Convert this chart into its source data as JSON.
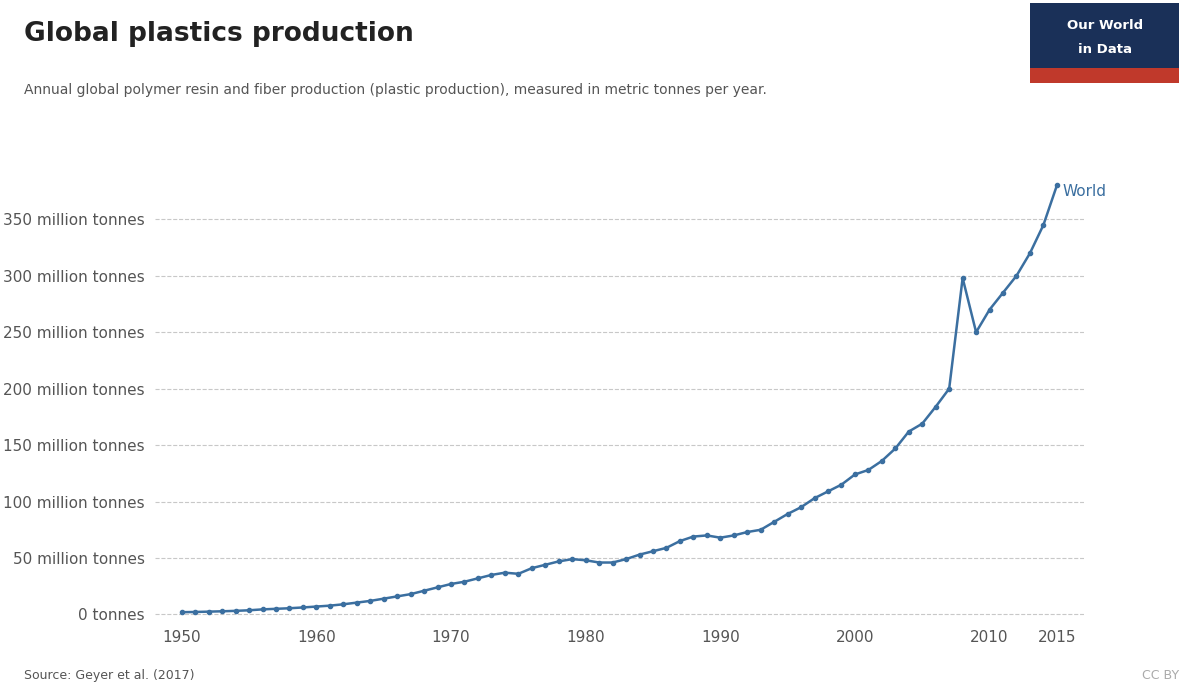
{
  "title": "Global plastics production",
  "subtitle": "Annual global polymer resin and fiber production (plastic production), measured in metric tonnes per year.",
  "source": "Source: Geyer et al. (2017)",
  "cc": "CC BY",
  "line_color": "#3b6fa0",
  "line_label": "World",
  "background_color": "#ffffff",
  "grid_color": "#c8c8c8",
  "years": [
    1950,
    1951,
    1952,
    1953,
    1954,
    1955,
    1956,
    1957,
    1958,
    1959,
    1960,
    1961,
    1962,
    1963,
    1964,
    1965,
    1966,
    1967,
    1968,
    1969,
    1970,
    1971,
    1972,
    1973,
    1974,
    1975,
    1976,
    1977,
    1978,
    1979,
    1980,
    1981,
    1982,
    1983,
    1984,
    1985,
    1986,
    1987,
    1988,
    1989,
    1990,
    1991,
    1992,
    1993,
    1994,
    1995,
    1996,
    1997,
    1998,
    1999,
    2000,
    2001,
    2002,
    2003,
    2004,
    2005,
    2006,
    2007,
    2008,
    2009,
    2010,
    2011,
    2012,
    2013,
    2014,
    2015
  ],
  "values": [
    2000000,
    2200000,
    2500000,
    2800000,
    3200000,
    3700000,
    4500000,
    5000000,
    5500000,
    6200000,
    7000000,
    7800000,
    9000000,
    10500000,
    12000000,
    14000000,
    16000000,
    18000000,
    21000000,
    24000000,
    27000000,
    29000000,
    32000000,
    35000000,
    37000000,
    36000000,
    41000000,
    44000000,
    47000000,
    49000000,
    48000000,
    46000000,
    46000000,
    49000000,
    53000000,
    56000000,
    59000000,
    65000000,
    69000000,
    70000000,
    68000000,
    70000000,
    73000000,
    75000000,
    82000000,
    89000000,
    95000000,
    103000000,
    109000000,
    115000000,
    124000000,
    128000000,
    136000000,
    147000000,
    162000000,
    169000000,
    184000000,
    200000000,
    298000000,
    250000000,
    270000000,
    285000000,
    300000000,
    320000000,
    345000000,
    380000000
  ],
  "yticks": [
    0,
    50000000,
    100000000,
    150000000,
    200000000,
    250000000,
    300000000,
    350000000
  ],
  "ytick_labels": [
    "0 tonnes",
    "50 million tonnes",
    "100 million tonnes",
    "150 million tonnes",
    "200 million tonnes",
    "250 million tonnes",
    "300 million tonnes",
    "350 million tonnes"
  ],
  "xticks": [
    1950,
    1960,
    1970,
    1980,
    1990,
    2000,
    2010,
    2015
  ],
  "ylim": [
    -5000000,
    410000000
  ],
  "xlim": [
    1948,
    2017
  ],
  "owid_box_dark": "#1a3058",
  "owid_box_red": "#c0392b",
  "marker_size": 3.0,
  "line_width": 1.8
}
